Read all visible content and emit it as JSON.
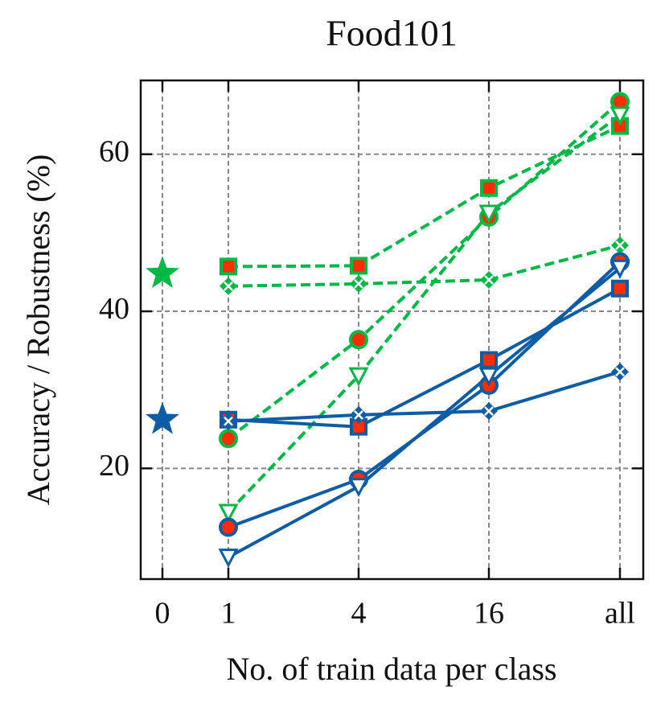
{
  "chart_data": {
    "type": "line",
    "title": "Food101",
    "xlabel": "No. of train data per class",
    "ylabel": "Accuracy / Robustness (%)",
    "categories": [
      "0",
      "1",
      "4",
      "16",
      "all"
    ],
    "ylim": [
      5.9,
      69.4
    ],
    "yticks": [
      20,
      40,
      60
    ],
    "grid": true,
    "series": [
      {
        "color": "#00b945",
        "marker": "circle",
        "linestyle": "dashed",
        "values": [
          null,
          23.8,
          36.4,
          52.0,
          66.7
        ]
      },
      {
        "color": "#00b945",
        "marker": "square",
        "linestyle": "dashed",
        "values": [
          null,
          45.7,
          45.8,
          55.7,
          63.6
        ]
      },
      {
        "color": "#00b945",
        "marker": "x",
        "linestyle": "dashed",
        "values": [
          null,
          43.2,
          43.5,
          44.0,
          48.4
        ]
      },
      {
        "color": "#00b945",
        "marker": "triangle",
        "linestyle": "dashed",
        "values": [
          null,
          14.4,
          31.8,
          52.5,
          65.0
        ]
      },
      {
        "color": "#0c5da5",
        "marker": "circle",
        "linestyle": "solid",
        "values": [
          null,
          12.5,
          18.6,
          30.6,
          46.3
        ]
      },
      {
        "color": "#0c5da5",
        "marker": "square",
        "linestyle": "solid",
        "values": [
          null,
          26.2,
          25.3,
          33.8,
          42.9
        ]
      },
      {
        "color": "#0c5da5",
        "marker": "x",
        "linestyle": "solid",
        "values": [
          null,
          26.0,
          26.8,
          27.3,
          32.3
        ]
      },
      {
        "color": "#0c5da5",
        "marker": "triangle",
        "linestyle": "solid",
        "values": [
          null,
          8.7,
          17.7,
          31.8,
          45.5
        ]
      },
      {
        "color": "#00b945",
        "marker": "star",
        "linestyle": "none",
        "values": [
          44.8,
          null,
          null,
          null,
          null
        ]
      },
      {
        "color": "#0c5da5",
        "marker": "star",
        "linestyle": "none",
        "values": [
          26.2,
          null,
          null,
          null,
          null
        ]
      }
    ]
  }
}
